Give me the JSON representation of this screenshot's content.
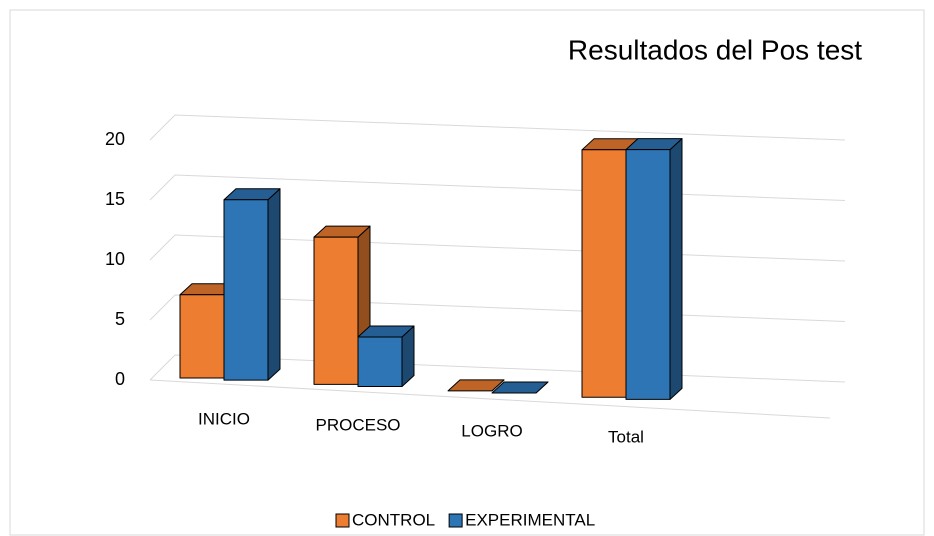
{
  "chart_data": {
    "type": "bar3d",
    "title": "Resultados del Pos test",
    "categories": [
      "INICIO",
      "PROCESO",
      "LOGRO",
      "Total"
    ],
    "series": [
      {
        "name": "CONTROL",
        "color": "#ED7D31",
        "values": [
          7,
          12,
          0,
          19
        ]
      },
      {
        "name": "EXPERIMENTAL",
        "color": "#2E75B6",
        "values": [
          15,
          4,
          0,
          19
        ]
      }
    ],
    "ylim": [
      0,
      20
    ],
    "yticks": [
      0,
      5,
      10,
      15,
      20
    ],
    "grid": true,
    "legend": "bottom"
  }
}
